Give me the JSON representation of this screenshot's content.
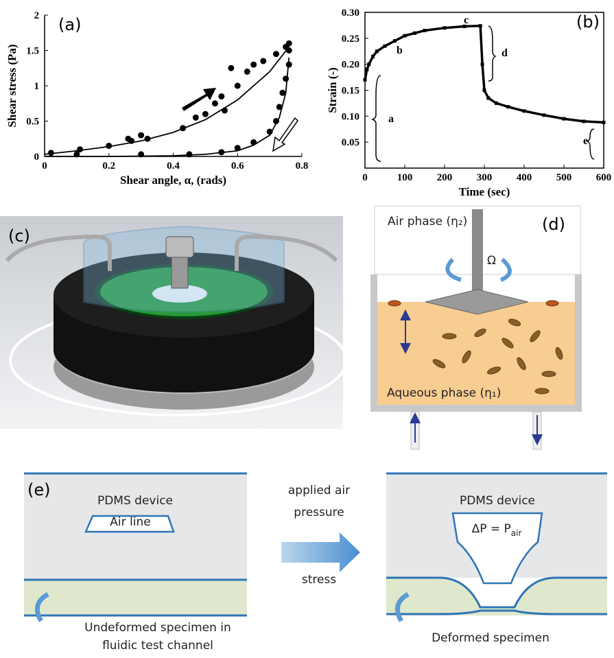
{
  "chart_data": [
    {
      "type": "scatter",
      "panel_label": "(a)",
      "x_label": "Shear angle, α, (rads)",
      "y_label": "Shear stress (Pa)",
      "xlim": [
        0,
        0.8
      ],
      "ylim": [
        0,
        2
      ],
      "xticks": [
        0,
        0.2,
        0.4,
        0.6,
        0.8
      ],
      "yticks": [
        0,
        0.5,
        1,
        1.5,
        2
      ],
      "series": [
        {
          "style": "markers",
          "color": "#000000",
          "x": [
            0.02,
            0.11,
            0.2,
            0.26,
            0.27,
            0.3,
            0.32,
            0.43,
            0.47,
            0.5,
            0.53,
            0.55,
            0.56,
            0.58,
            0.6,
            0.63,
            0.65,
            0.68,
            0.72,
            0.75,
            0.76
          ],
          "values": [
            0.05,
            0.1,
            0.15,
            0.25,
            0.22,
            0.3,
            0.25,
            0.4,
            0.55,
            0.6,
            0.75,
            0.85,
            0.65,
            1.25,
            1.0,
            1.2,
            1.3,
            1.35,
            1.45,
            1.55,
            1.6
          ]
        },
        {
          "style": "markers",
          "color": "#000000",
          "x": [
            0.76,
            0.76,
            0.75,
            0.74,
            0.73,
            0.72,
            0.7,
            0.65,
            0.6,
            0.55,
            0.45,
            0.3,
            0.1
          ],
          "values": [
            1.5,
            1.3,
            1.1,
            0.9,
            0.7,
            0.5,
            0.35,
            0.2,
            0.12,
            0.06,
            0.03,
            0.03,
            0.03
          ]
        },
        {
          "style": "line",
          "color": "#000000",
          "x": [
            0,
            0.1,
            0.2,
            0.3,
            0.4,
            0.5,
            0.6,
            0.7,
            0.76
          ],
          "values": [
            0.03,
            0.08,
            0.14,
            0.22,
            0.34,
            0.52,
            0.8,
            1.2,
            1.55
          ]
        },
        {
          "style": "line",
          "color": "#000000",
          "x": [
            0,
            0.2,
            0.4,
            0.5,
            0.6,
            0.65,
            0.7,
            0.73,
            0.75,
            0.76
          ],
          "values": [
            0,
            0,
            0.01,
            0.03,
            0.08,
            0.16,
            0.3,
            0.55,
            0.9,
            1.4
          ]
        }
      ]
    },
    {
      "type": "line",
      "panel_label": "(b)",
      "x_label": "Time (sec)",
      "y_label": "Strain (-)",
      "xlim": [
        0,
        600
      ],
      "ylim": [
        0,
        0.3
      ],
      "xticks": [
        0,
        100,
        200,
        300,
        400,
        500,
        600
      ],
      "yticks": [
        0.05,
        {
          "value": 0.1,
          "label": "0.10"
        },
        0.15,
        {
          "value": 0.2,
          "label": "0.20"
        },
        0.25,
        {
          "value": 0.3,
          "label": "0.30"
        }
      ],
      "series": [
        {
          "style": "line-markers",
          "color": "#000000",
          "x": [
            0,
            5,
            10,
            20,
            30,
            50,
            75,
            100,
            125,
            150,
            200,
            250,
            290,
            295,
            300,
            310,
            330,
            360,
            400,
            450,
            500,
            550,
            600
          ],
          "values": [
            0.17,
            0.19,
            0.2,
            0.215,
            0.225,
            0.235,
            0.245,
            0.255,
            0.26,
            0.265,
            0.27,
            0.273,
            0.274,
            0.2,
            0.15,
            0.135,
            0.125,
            0.118,
            0.11,
            0.102,
            0.095,
            0.09,
            0.088
          ]
        }
      ],
      "annotations": [
        "a",
        "b",
        "c",
        "d",
        "e"
      ]
    }
  ],
  "panel_c": {
    "label": "(c)"
  },
  "panel_d": {
    "label": "(d)",
    "air_phase": "Air phase (η₂)",
    "rotation": "Ω",
    "aqueous_phase": "Aqueous phase (η₁)"
  },
  "panel_e": {
    "label": "(e)",
    "left": {
      "device": "PDMS device",
      "air_line": "Air line",
      "caption": [
        "Undeformed specimen in",
        "fluidic test channel"
      ]
    },
    "middle": [
      "applied air",
      "pressure",
      "stress"
    ],
    "right": {
      "device": "PDMS device",
      "pressure": "ΔP = P",
      "pressure_subscript": "air",
      "caption": [
        "Deformed specimen"
      ]
    }
  }
}
